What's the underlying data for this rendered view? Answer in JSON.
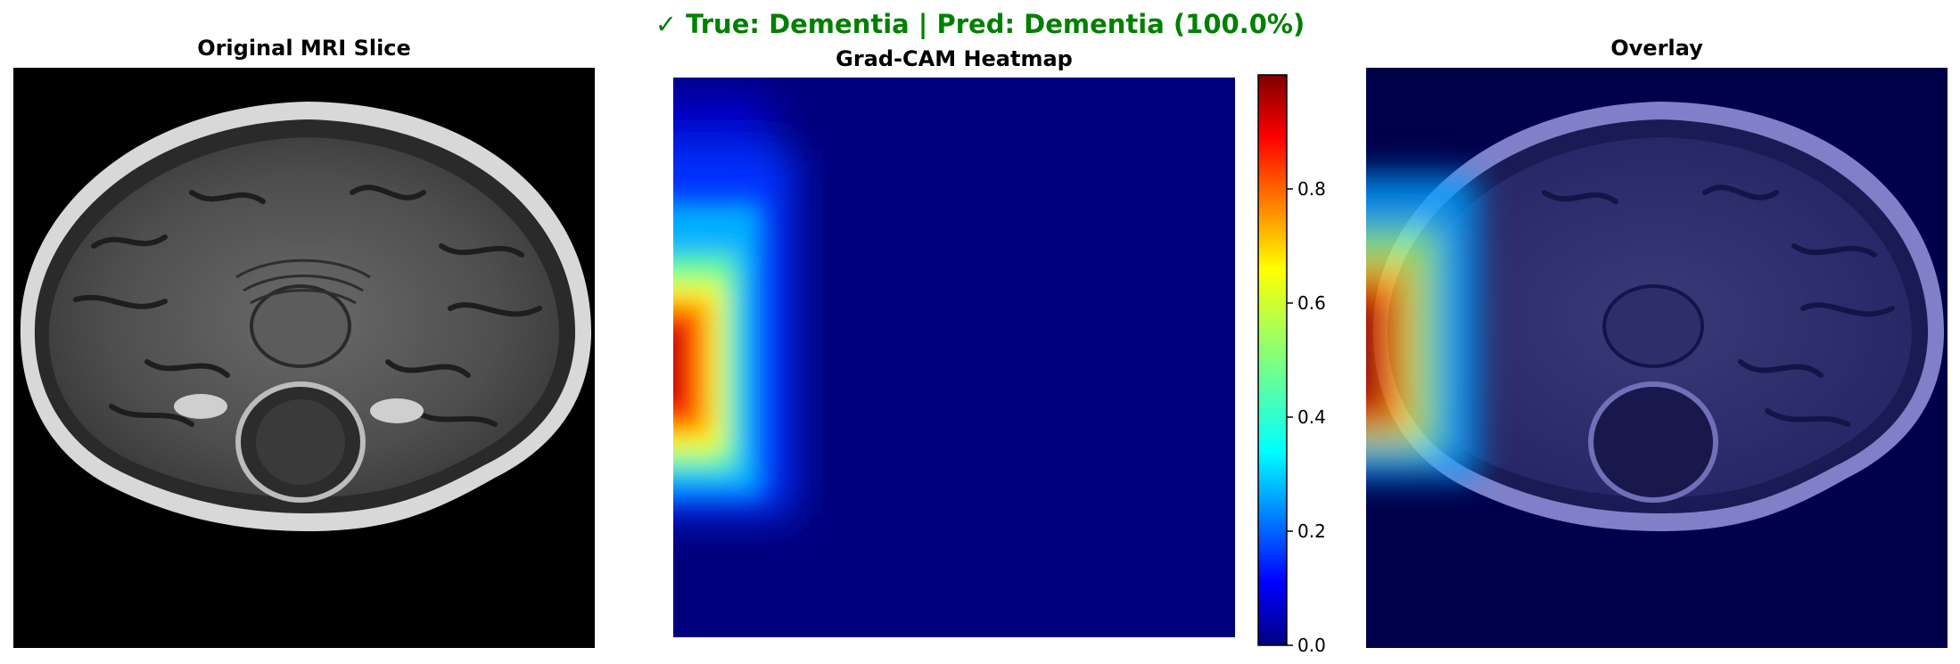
{
  "suptitle": "✓ True: Dementia | Pred: Dementia (100.0%)",
  "colors": {
    "suptitle": "#008000",
    "background": "#000000",
    "heat_low": "#00007f",
    "heat_high": "#800000"
  },
  "panels": {
    "original": {
      "title": "Original MRI Slice"
    },
    "heatmap": {
      "title": "Grad-CAM Heatmap"
    },
    "overlay": {
      "title": "Overlay"
    }
  },
  "colorbar": {
    "colormap": "jet",
    "range": [
      0.0,
      1.0
    ],
    "ticks": [
      "0.0",
      "0.2",
      "0.4",
      "0.6",
      "0.8"
    ]
  }
}
